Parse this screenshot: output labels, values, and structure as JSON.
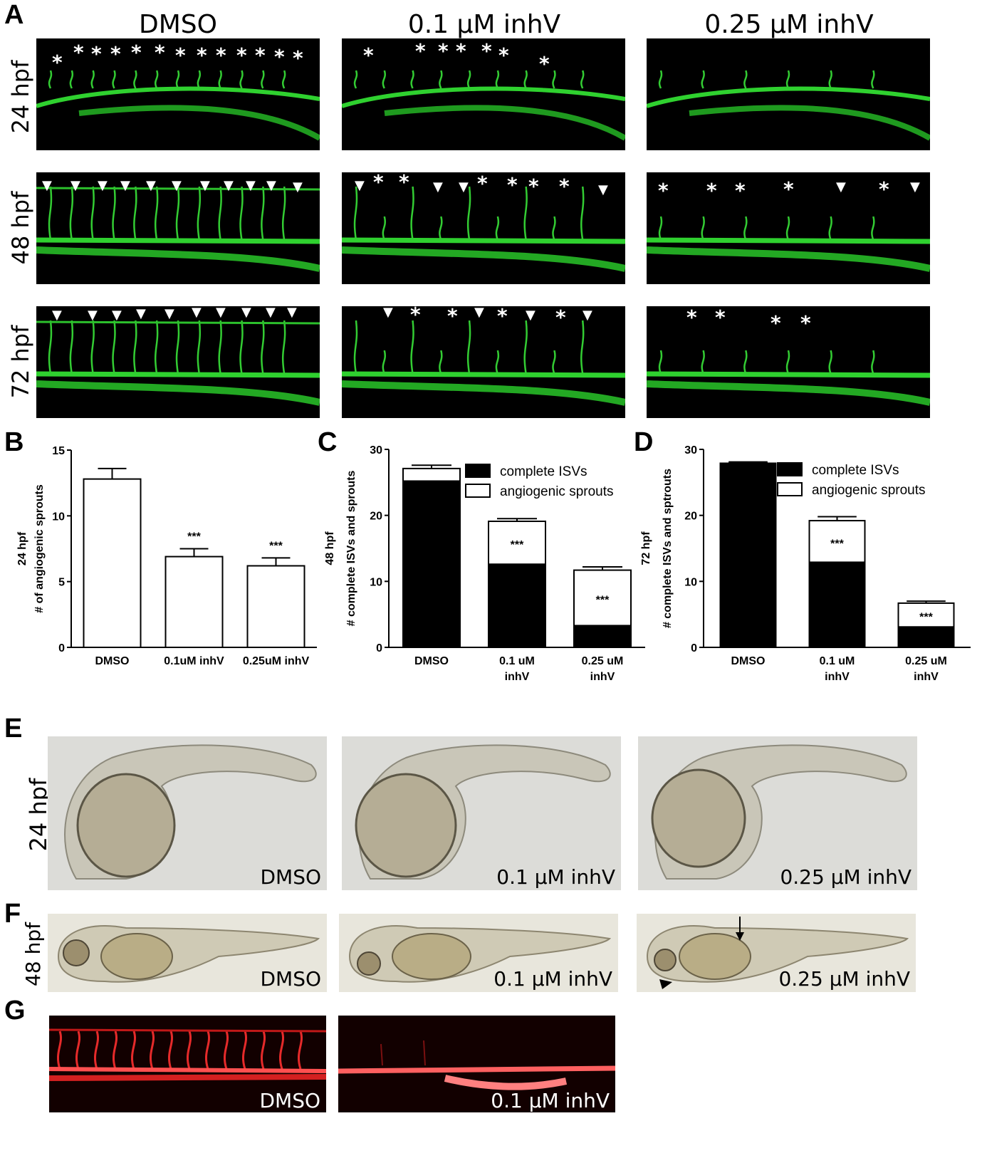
{
  "panel_letters": [
    "A",
    "B",
    "C",
    "D",
    "E",
    "F",
    "G"
  ],
  "panelA": {
    "columns": [
      "DMSO",
      "0.1 μM inhV",
      "0.25 μM inhV"
    ],
    "rows": [
      "24 hpf",
      "48 hpf",
      "72 hpf"
    ],
    "asterisk": "*",
    "arrowhead": "▼"
  },
  "chart_data": [
    {
      "panel": "B",
      "type": "bar",
      "ylabel_line1": "24 hpf",
      "ylabel_line2": "# of angiogenic sprouts",
      "categories": [
        "DMSO",
        "0.1uM inhV",
        "0.25uM inhV"
      ],
      "values": [
        12.8,
        6.9,
        6.2
      ],
      "errors": [
        0.8,
        0.6,
        0.6
      ],
      "significance": [
        "",
        "***",
        "***"
      ],
      "ylim": [
        0,
        15
      ],
      "yticks": [
        "0",
        "5",
        "10",
        "15"
      ]
    },
    {
      "panel": "C",
      "type": "bar",
      "stacked": true,
      "ylabel_line1": "48 hpf",
      "ylabel_line2": "# complete ISVs and sprouts",
      "categories": [
        [
          "DMSO"
        ],
        [
          "0.1 uM",
          "inhV"
        ],
        [
          "0.25 uM",
          "inhV"
        ]
      ],
      "series": [
        {
          "name": "complete ISVs",
          "values": [
            25.2,
            12.6,
            3.3
          ],
          "errors": [
            0.6,
            0.4,
            0.2
          ],
          "color": "#000000"
        },
        {
          "name": "angiogenic sprouts",
          "values": [
            1.9,
            6.5,
            8.4
          ],
          "errors": [
            0.5,
            0.4,
            0.5
          ],
          "color": "#ffffff"
        }
      ],
      "significance": [
        "",
        "***",
        "***"
      ],
      "ylim": [
        0,
        30
      ],
      "yticks": [
        "0",
        "10",
        "20",
        "30"
      ]
    },
    {
      "panel": "D",
      "type": "bar",
      "stacked": true,
      "ylabel_line1": "72 hpf",
      "ylabel_line2": "# complete ISVs and sptrouts",
      "categories": [
        [
          "DMSO"
        ],
        [
          "0.1 uM",
          "inhV"
        ],
        [
          "0.25 uM",
          "inhV"
        ]
      ],
      "series": [
        {
          "name": "complete ISVs",
          "values": [
            27.8,
            12.9,
            3.1
          ],
          "errors": [
            0.2,
            0.6,
            0.2
          ],
          "color": "#000000"
        },
        {
          "name": "angiogenic sprouts",
          "values": [
            0.1,
            6.3,
            3.6
          ],
          "errors": [
            0.2,
            0.6,
            0.3
          ],
          "color": "#ffffff"
        }
      ],
      "significance": [
        "",
        "***",
        "***"
      ],
      "ylim": [
        0,
        30
      ],
      "yticks": [
        "0",
        "10",
        "20",
        "30"
      ]
    }
  ],
  "panelE": {
    "row_label": "24 hpf",
    "labels": [
      "DMSO",
      "0.1 μM inhV",
      "0.25 μM inhV"
    ]
  },
  "panelF": {
    "row_label": "48 hpf",
    "labels": [
      "DMSO",
      "0.1 μM inhV",
      "0.25 μM inhV"
    ]
  },
  "panelG": {
    "labels": [
      "DMSO",
      "0.1 μM inhV"
    ]
  }
}
